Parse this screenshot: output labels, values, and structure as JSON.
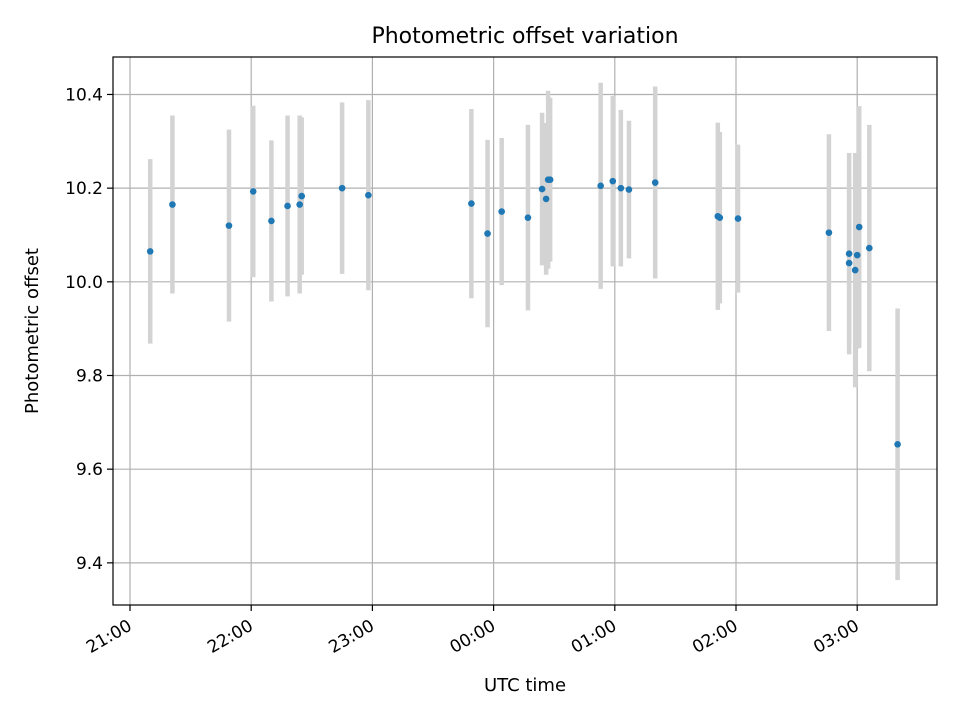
{
  "chart_data": {
    "type": "scatter",
    "title": "Photometric offset variation",
    "xlabel": "UTC time",
    "ylabel": "Photometric offset",
    "x_tick_labels": [
      "21:00",
      "22:00",
      "23:00",
      "00:00",
      "01:00",
      "02:00",
      "03:00"
    ],
    "y_tick_labels": [
      "9.4",
      "9.6",
      "9.8",
      "10.0",
      "10.2",
      "10.4"
    ],
    "y_ticks": [
      9.4,
      9.6,
      9.8,
      10.0,
      10.2,
      10.4
    ],
    "ylim": [
      9.31,
      10.48
    ],
    "grid": true,
    "marker_color": "#1f77b4",
    "errorbar_color": "#d3d3d3",
    "points": [
      {
        "time": "21:10",
        "y": 10.065,
        "yerr": 0.197
      },
      {
        "time": "21:21",
        "y": 10.165,
        "yerr": 0.19
      },
      {
        "time": "21:49",
        "y": 10.12,
        "yerr": 0.205
      },
      {
        "time": "22:01",
        "y": 10.193,
        "yerr": 0.183
      },
      {
        "time": "22:10",
        "y": 10.13,
        "yerr": 0.172
      },
      {
        "time": "22:18",
        "y": 10.162,
        "yerr": 0.193
      },
      {
        "time": "22:24",
        "y": 10.165,
        "yerr": 0.19
      },
      {
        "time": "22:25",
        "y": 10.183,
        "yerr": 0.168
      },
      {
        "time": "22:45",
        "y": 10.2,
        "yerr": 0.183
      },
      {
        "time": "22:58",
        "y": 10.185,
        "yerr": 0.203
      },
      {
        "time": "23:49",
        "y": 10.167,
        "yerr": 0.202
      },
      {
        "time": "23:57",
        "y": 10.103,
        "yerr": 0.2
      },
      {
        "time": "00:04",
        "y": 10.15,
        "yerr": 0.157
      },
      {
        "time": "00:17",
        "y": 10.137,
        "yerr": 0.198
      },
      {
        "time": "00:24",
        "y": 10.198,
        "yerr": 0.163
      },
      {
        "time": "00:26",
        "y": 10.177,
        "yerr": 0.162
      },
      {
        "time": "00:27",
        "y": 10.218,
        "yerr": 0.19
      },
      {
        "time": "00:28",
        "y": 10.218,
        "yerr": 0.175
      },
      {
        "time": "00:53",
        "y": 10.205,
        "yerr": 0.22
      },
      {
        "time": "00:59",
        "y": 10.215,
        "yerr": 0.182
      },
      {
        "time": "01:03",
        "y": 10.2,
        "yerr": 0.167
      },
      {
        "time": "01:07",
        "y": 10.197,
        "yerr": 0.147
      },
      {
        "time": "01:20",
        "y": 10.212,
        "yerr": 0.205
      },
      {
        "time": "01:51",
        "y": 10.14,
        "yerr": 0.2
      },
      {
        "time": "01:52",
        "y": 10.137,
        "yerr": 0.183
      },
      {
        "time": "02:01",
        "y": 10.135,
        "yerr": 0.158
      },
      {
        "time": "02:46",
        "y": 10.105,
        "yerr": 0.21
      },
      {
        "time": "02:56",
        "y": 10.04,
        "yerr": 0.17
      },
      {
        "time": "02:56",
        "y": 10.06,
        "yerr": 0.215
      },
      {
        "time": "02:59",
        "y": 10.025,
        "yerr": 0.25
      },
      {
        "time": "03:00",
        "y": 10.057,
        "yerr": 0.2
      },
      {
        "time": "03:01",
        "y": 10.117,
        "yerr": 0.258
      },
      {
        "time": "03:06",
        "y": 10.072,
        "yerr": 0.263
      },
      {
        "time": "03:20",
        "y": 9.653,
        "yerr": 0.29
      }
    ]
  }
}
